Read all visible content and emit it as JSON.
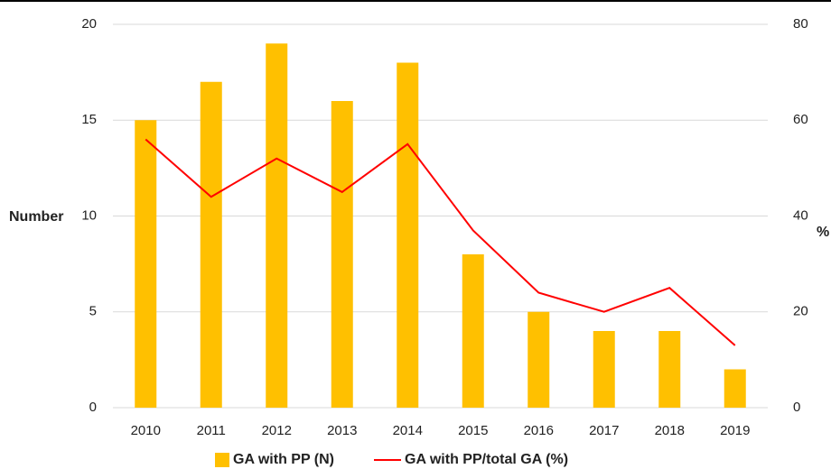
{
  "chart_data": {
    "type": "bar_line",
    "ylabel": "Number",
    "y2label": "%",
    "categories": [
      "2010",
      "2011",
      "2012",
      "2013",
      "2014",
      "2015",
      "2016",
      "2017",
      "2018",
      "2019"
    ],
    "series": [
      {
        "name": "GA with PP (N)",
        "color": "#ffc000",
        "type": "bar",
        "values": [
          15,
          17,
          19,
          16,
          18,
          8,
          5,
          4,
          4,
          2
        ]
      },
      {
        "name": "GA with PP/total GA (%)",
        "color": "#ff0000",
        "type": "line",
        "axis": "y2",
        "values": [
          56,
          44,
          52,
          45,
          55,
          37,
          24,
          20,
          25,
          13
        ]
      }
    ],
    "ylim": [
      0,
      20
    ],
    "yticks": [
      0,
      5,
      10,
      15,
      20
    ],
    "y2lim": [
      0,
      80
    ],
    "y2ticks": [
      0,
      20,
      40,
      60,
      80
    ],
    "grid": true
  }
}
